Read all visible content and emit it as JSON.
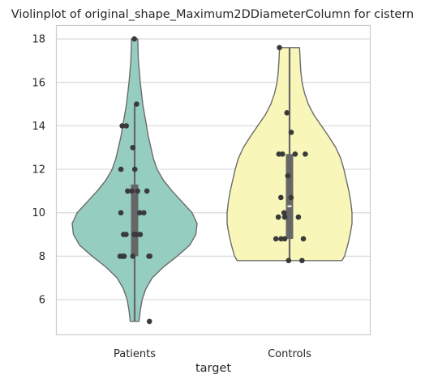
{
  "chart_data": {
    "type": "violin",
    "title": "Violinplot of original_shape_Maximum2DDiameterColumn for cistern",
    "xlabel": "target",
    "ylabel": "",
    "categories": [
      "Patients",
      "Controls"
    ],
    "y_ticks": [
      6,
      8,
      10,
      12,
      14,
      16,
      18
    ],
    "ylim": [
      4.4,
      18.6
    ],
    "grid": "horizontal",
    "legend": "none",
    "colors": {
      "Patients": "#95cdc1",
      "Controls": "#f8f7b9",
      "outline": "#6b6b6b",
      "points": "#3a3a3a",
      "box": "#666666",
      "grid": "#d9d9d9"
    },
    "violin_profiles": [
      {
        "category": "Patients",
        "min": 5.0,
        "max": 18.0,
        "profile": [
          [
            5.0,
            0.07
          ],
          [
            5.5,
            0.09
          ],
          [
            6.0,
            0.12
          ],
          [
            6.5,
            0.18
          ],
          [
            7.0,
            0.28
          ],
          [
            7.5,
            0.46
          ],
          [
            8.0,
            0.68
          ],
          [
            8.5,
            0.88
          ],
          [
            9.0,
            0.98
          ],
          [
            9.5,
            1.0
          ],
          [
            10.0,
            0.92
          ],
          [
            10.5,
            0.76
          ],
          [
            11.0,
            0.6
          ],
          [
            11.5,
            0.46
          ],
          [
            12.0,
            0.36
          ],
          [
            12.5,
            0.3
          ],
          [
            13.0,
            0.26
          ],
          [
            13.5,
            0.22
          ],
          [
            14.0,
            0.19
          ],
          [
            14.5,
            0.16
          ],
          [
            15.0,
            0.13
          ],
          [
            16.0,
            0.09
          ],
          [
            17.0,
            0.06
          ],
          [
            18.0,
            0.05
          ]
        ]
      },
      {
        "category": "Controls",
        "min": 7.8,
        "max": 17.6,
        "profile": [
          [
            7.8,
            0.84
          ],
          [
            8.0,
            0.88
          ],
          [
            8.5,
            0.93
          ],
          [
            9.0,
            0.97
          ],
          [
            9.5,
            1.0
          ],
          [
            10.0,
            1.0
          ],
          [
            10.5,
            0.98
          ],
          [
            11.0,
            0.95
          ],
          [
            11.5,
            0.91
          ],
          [
            12.0,
            0.87
          ],
          [
            12.5,
            0.82
          ],
          [
            13.0,
            0.74
          ],
          [
            13.5,
            0.63
          ],
          [
            14.0,
            0.51
          ],
          [
            14.5,
            0.39
          ],
          [
            15.0,
            0.3
          ],
          [
            15.5,
            0.24
          ],
          [
            16.0,
            0.2
          ],
          [
            16.5,
            0.18
          ],
          [
            17.0,
            0.17
          ],
          [
            17.6,
            0.16
          ]
        ]
      }
    ],
    "boxes": [
      {
        "category": "Patients",
        "whisker_low": 5.0,
        "q1": 8.0,
        "median": 9.0,
        "q3": 11.3,
        "whisker_high": 15.0
      },
      {
        "category": "Controls",
        "whisker_low": 7.8,
        "q1": 8.8,
        "median": 10.3,
        "q3": 12.7,
        "whisker_high": 17.6
      }
    ],
    "points": [
      {
        "category": "Patients",
        "values": [
          18.0,
          15.0,
          14.0,
          14.0,
          13.0,
          12.0,
          12.0,
          11.0,
          11.0,
          11.0,
          11.0,
          10.0,
          10.0,
          10.0,
          9.0,
          9.0,
          9.0,
          9.0,
          9.0,
          9.0,
          8.0,
          8.0,
          8.0,
          8.0,
          8.0,
          8.0,
          5.0
        ]
      },
      {
        "category": "Controls",
        "values": [
          17.6,
          14.6,
          13.7,
          12.7,
          12.7,
          12.7,
          12.7,
          11.7,
          10.7,
          10.7,
          10.0,
          9.8,
          9.8,
          9.8,
          8.8,
          8.8,
          8.8,
          8.8,
          7.8,
          7.8
        ]
      }
    ]
  }
}
